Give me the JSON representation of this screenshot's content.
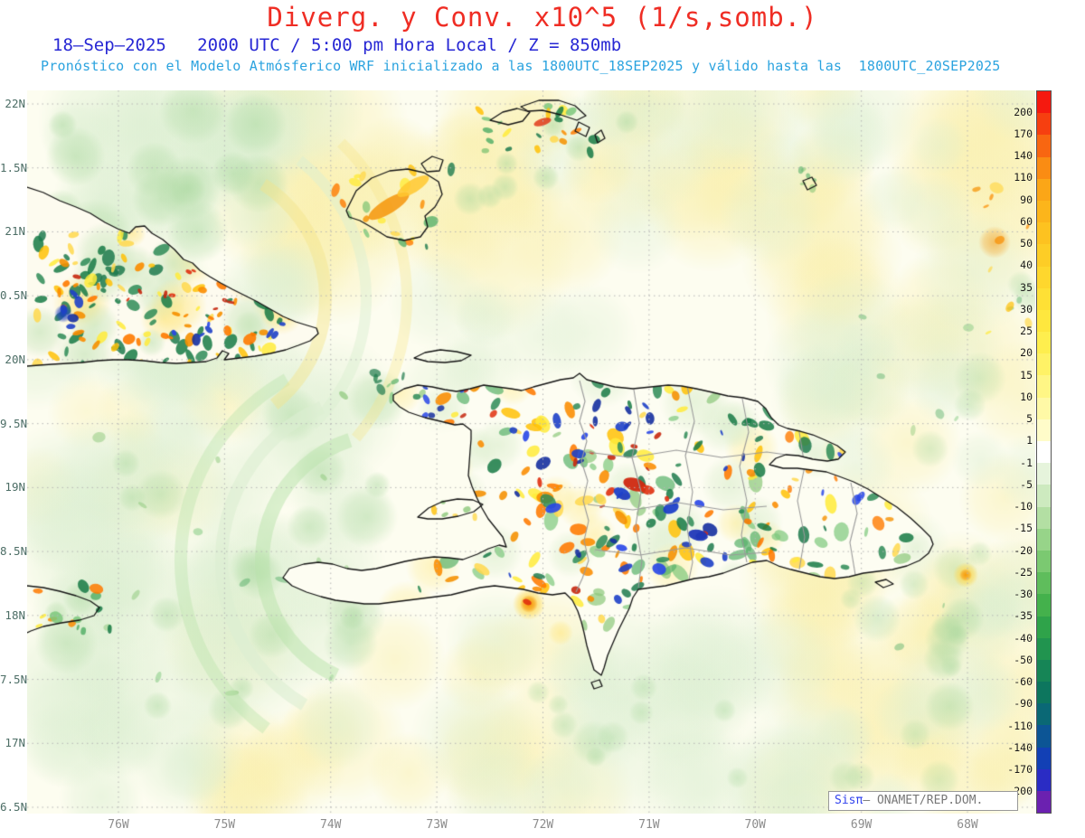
{
  "header": {
    "title": "Diverg. y Conv. x10^5 (1/s,somb.)",
    "title_color": "#ef2d24",
    "subtitle": "18–Sep–2025   2000 UTC / 5:00 pm Hora Local / Z = 850mb",
    "subtitle_color": "#2727d4",
    "forecast_line": "Pronóstico con el Modelo Atmósferico WRF inicializado a las 1800UTC_18SEP2025 y válido hasta las  1800UTC_20SEP2025",
    "forecast_color": "#2ba3df"
  },
  "axes": {
    "lat_labels": [
      "22N",
      "1.5N",
      "21N",
      "0.5N",
      "20N",
      "9.5N",
      "19N",
      "8.5N",
      "18N",
      "7.5N",
      "17N",
      "6.5N"
    ],
    "lon_labels": [
      "76W",
      "75W",
      "74W",
      "73W",
      "72W",
      "71W",
      "70W",
      "69W",
      "68W"
    ]
  },
  "colorbar": {
    "labels": [
      "200",
      "170",
      "140",
      "110",
      "90",
      "60",
      "50",
      "40",
      "35",
      "30",
      "25",
      "20",
      "15",
      "10",
      "5",
      "1",
      "-1",
      "-5",
      "-10",
      "-15",
      "-20",
      "-25",
      "-30",
      "-35",
      "-40",
      "-50",
      "-60",
      "-90",
      "-110",
      "-140",
      "-170",
      "-200"
    ],
    "colors": [
      "#f5190f",
      "#f63f10",
      "#f86611",
      "#fa8c13",
      "#fba617",
      "#fcb51b",
      "#fdc220",
      "#fdcd26",
      "#fed72d",
      "#fee035",
      "#fee73e",
      "#feee4e",
      "#fff266",
      "#fff685",
      "#fff9a6",
      "#fffcc9",
      "#ffffff",
      "#e6f4dc",
      "#cdeabf",
      "#b3dfa3",
      "#97d489",
      "#7bc971",
      "#5fbd5c",
      "#44b14c",
      "#2fa34a",
      "#21944f",
      "#168556",
      "#0d765e",
      "#0a6875",
      "#0c5595",
      "#1240b5",
      "#2a2cc4",
      "#6b21b0"
    ]
  },
  "credit": {
    "brand": "Sisπ",
    "text": "— ONAMET/REP.DOM."
  }
}
